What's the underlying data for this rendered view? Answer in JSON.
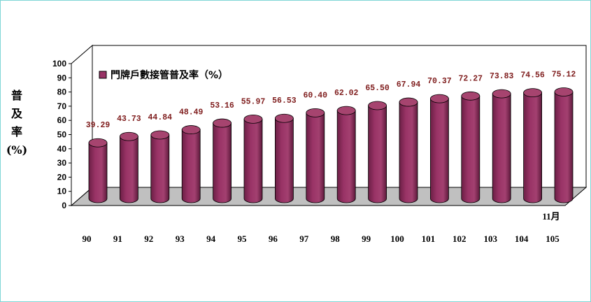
{
  "chart_data": {
    "type": "bar",
    "style": "3d-cylinder",
    "categories": [
      "90",
      "91",
      "92",
      "93",
      "94",
      "95",
      "96",
      "97",
      "98",
      "99",
      "100",
      "101",
      "102",
      "103",
      "104",
      "105"
    ],
    "series": [
      {
        "name": "門牌戶數接管普及率（%）",
        "values": [
          39.29,
          43.73,
          44.84,
          48.49,
          53.16,
          55.97,
          56.53,
          60.4,
          62.02,
          65.5,
          67.94,
          70.37,
          72.27,
          73.83,
          74.56,
          75.12
        ],
        "labels": [
          "39.29",
          "43.73",
          "44.84",
          "48.49",
          "53.16",
          "55.97",
          "56.53",
          "60.40",
          "62.02",
          "65.50",
          "67.94",
          "70.37",
          "72.27",
          "73.83",
          "74.56",
          "75.12"
        ],
        "color": "#993366"
      }
    ],
    "ylabel": [
      "普",
      "及",
      "率",
      "(%)"
    ],
    "ylim": [
      0,
      100
    ],
    "yticks": [
      0,
      10,
      20,
      30,
      40,
      50,
      60,
      70,
      80,
      90,
      100
    ],
    "annotation": "11月",
    "legend_position": "top-left",
    "floor_color": "#c0c0c0",
    "grid": false
  }
}
